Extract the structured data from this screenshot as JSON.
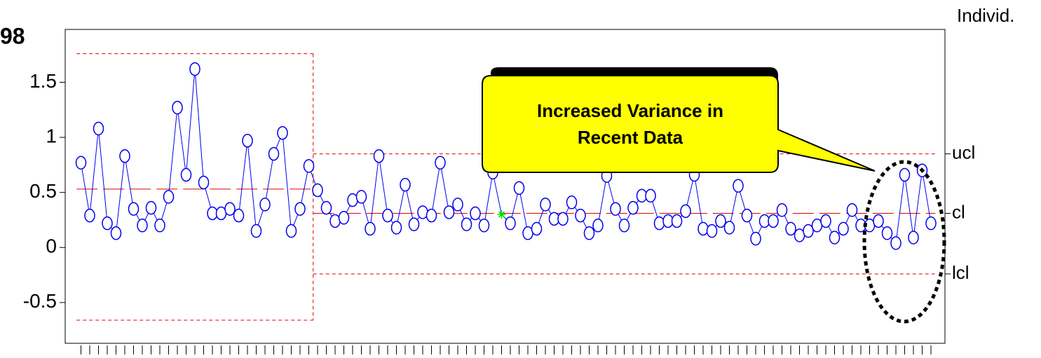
{
  "chart_data": {
    "type": "control",
    "title": "Individ.",
    "corner_label": "98",
    "annotation": [
      "Increased Variance in",
      "Recent Data"
    ],
    "x": [
      1,
      2,
      3,
      4,
      5,
      6,
      7,
      8,
      9,
      10,
      11,
      12,
      13,
      14,
      15,
      16,
      17,
      18,
      19,
      20,
      21,
      22,
      23,
      24,
      25,
      26,
      27,
      28,
      29,
      30,
      31,
      32,
      33,
      34,
      35,
      36,
      37,
      38,
      39,
      40,
      41,
      42,
      43,
      44,
      45,
      46,
      47,
      48,
      49,
      50,
      51,
      52,
      53,
      54,
      55,
      56,
      57,
      58,
      59,
      60,
      61,
      62,
      63,
      64,
      65,
      66,
      67,
      68,
      69,
      70,
      71,
      72,
      73,
      74,
      75,
      76,
      77,
      78,
      79,
      80,
      81,
      82,
      83,
      84,
      85,
      86,
      87,
      88,
      89,
      90,
      91,
      92,
      93,
      94,
      95,
      96,
      97,
      98
    ],
    "values": [
      0.77,
      0.29,
      1.08,
      0.22,
      0.13,
      0.83,
      0.35,
      0.2,
      0.36,
      0.2,
      0.46,
      1.27,
      0.66,
      1.62,
      0.59,
      0.31,
      0.31,
      0.35,
      0.29,
      0.97,
      0.15,
      0.39,
      0.85,
      1.04,
      0.15,
      0.35,
      0.74,
      0.52,
      0.36,
      0.24,
      0.27,
      0.43,
      0.46,
      0.17,
      0.83,
      0.29,
      0.18,
      0.57,
      0.21,
      0.32,
      0.29,
      0.77,
      0.32,
      0.39,
      0.21,
      0.31,
      0.2,
      0.68,
      0.3,
      0.22,
      0.54,
      0.13,
      0.17,
      0.39,
      0.26,
      0.26,
      0.41,
      0.29,
      0.13,
      0.2,
      0.65,
      0.35,
      0.2,
      0.36,
      0.47,
      0.47,
      0.22,
      0.24,
      0.24,
      0.33,
      0.66,
      0.17,
      0.15,
      0.24,
      0.18,
      0.56,
      0.29,
      0.08,
      0.24,
      0.24,
      0.34,
      0.17,
      0.11,
      0.15,
      0.2,
      0.24,
      0.09,
      0.17,
      0.34,
      0.2,
      0.2,
      0.24,
      0.13,
      0.04,
      0.66,
      0.09,
      0.7,
      0.22
    ],
    "color": "#0000ee",
    "highlight": 49,
    "highlight_color": "#00dd00",
    "phase_start": [
      1,
      28
    ],
    "ucl": [
      1.76,
      0.85
    ],
    "cl": [
      0.53,
      0.31
    ],
    "lcl": [
      -0.66,
      -0.24
    ],
    "limit_color": "#dd0000",
    "limit_labels": [
      "ucl",
      "cl",
      "lcl"
    ],
    "xlim": [
      -0.8,
      99.6
    ],
    "ylim": [
      -0.87,
      1.98
    ],
    "yticks": [
      -0.5,
      0,
      0.5,
      1,
      1.5
    ]
  }
}
